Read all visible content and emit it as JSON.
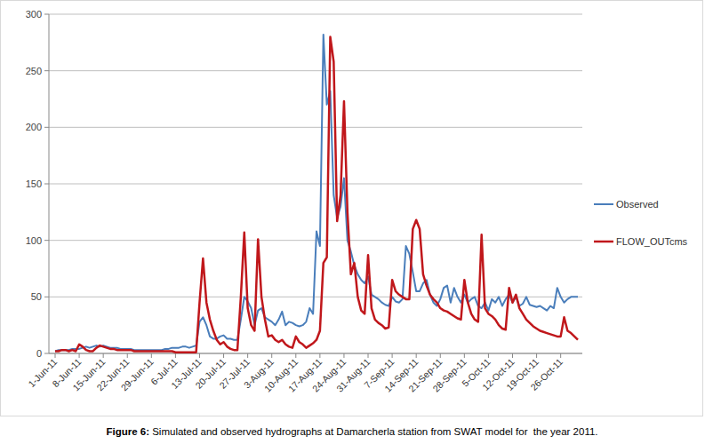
{
  "chart_data": {
    "type": "line",
    "title": "Figure 6: Simulated and observed hydrographs at Damarcherla station from SWAT model for  the year 2011.",
    "categories": [
      "1-Jun-11",
      null,
      null,
      null,
      null,
      null,
      null,
      "8-Jun-11",
      null,
      null,
      null,
      null,
      null,
      null,
      "15-Jun-11",
      null,
      null,
      null,
      null,
      null,
      null,
      "22-Jun-11",
      null,
      null,
      null,
      null,
      null,
      null,
      "29-Jun-11",
      null,
      null,
      null,
      null,
      null,
      null,
      "6-Jul-11",
      null,
      null,
      null,
      null,
      null,
      null,
      "13-Jul-11",
      null,
      null,
      null,
      null,
      null,
      null,
      "20-Jul-11",
      null,
      null,
      null,
      null,
      null,
      null,
      "27-Jul-11",
      null,
      null,
      null,
      null,
      null,
      null,
      "3-Aug-11",
      null,
      null,
      null,
      null,
      null,
      null,
      "10-Aug-11",
      null,
      null,
      null,
      null,
      null,
      null,
      "17-Aug-11",
      null,
      null,
      null,
      null,
      null,
      null,
      "24-Aug-11",
      null,
      null,
      null,
      null,
      null,
      null,
      "31-Aug-11",
      null,
      null,
      null,
      null,
      null,
      null,
      "7-Sep-11",
      null,
      null,
      null,
      null,
      null,
      null,
      "14-Sep-11",
      null,
      null,
      null,
      null,
      null,
      null,
      "21-Sep-11",
      null,
      null,
      null,
      null,
      null,
      null,
      "28-Sep-11",
      null,
      null,
      null,
      null,
      null,
      null,
      "5-Oct-11",
      null,
      null,
      null,
      null,
      null,
      null,
      "12-Oct-11",
      null,
      null,
      null,
      null,
      null,
      null,
      "19-Oct-11",
      null,
      null,
      null,
      null,
      null,
      null,
      "26-Oct-11",
      null,
      null,
      null,
      null,
      null
    ],
    "series": [
      {
        "name": "Observed",
        "color": "#4a7ebb",
        "values": [
          2,
          3,
          3,
          3,
          3,
          4,
          4,
          4,
          5,
          6,
          5,
          6,
          7,
          6,
          7,
          6,
          5,
          5,
          5,
          4,
          4,
          4,
          4,
          3,
          3,
          3,
          3,
          3,
          3,
          3,
          3,
          3,
          4,
          4,
          5,
          5,
          5,
          6,
          6,
          5,
          6,
          7,
          28,
          32,
          25,
          15,
          13,
          13,
          15,
          16,
          13,
          13,
          12,
          12,
          30,
          50,
          46,
          40,
          25,
          38,
          40,
          32,
          30,
          28,
          25,
          30,
          37,
          25,
          28,
          27,
          25,
          24,
          25,
          28,
          40,
          35,
          108,
          95,
          282,
          220,
          232,
          140,
          120,
          130,
          155,
          100,
          90,
          78,
          70,
          65,
          62,
          68,
          52,
          50,
          48,
          45,
          43,
          42,
          50,
          46,
          45,
          48,
          95,
          88,
          72,
          55,
          55,
          62,
          65,
          52,
          45,
          42,
          48,
          58,
          60,
          45,
          58,
          50,
          45,
          52,
          45,
          48,
          50,
          42,
          40,
          45,
          38,
          48,
          45,
          50,
          42,
          48,
          52,
          45,
          50,
          42,
          44,
          50,
          43,
          42,
          41,
          42,
          40,
          38,
          42,
          40,
          58,
          50,
          45,
          48,
          50,
          50,
          50
        ]
      },
      {
        "name": "FLOW_OUTcms",
        "color": "#c0171b",
        "values": [
          2,
          2,
          3,
          3,
          2,
          3,
          2,
          8,
          6,
          3,
          2,
          2,
          5,
          7,
          6,
          5,
          4,
          4,
          3,
          3,
          3,
          3,
          3,
          2,
          2,
          2,
          2,
          2,
          2,
          2,
          2,
          2,
          2,
          2,
          2,
          1,
          1,
          1,
          1,
          1,
          1,
          1,
          45,
          84,
          45,
          30,
          20,
          12,
          8,
          10,
          6,
          4,
          3,
          3,
          50,
          107,
          40,
          25,
          20,
          101,
          50,
          30,
          15,
          16,
          12,
          10,
          12,
          8,
          6,
          5,
          15,
          10,
          8,
          5,
          7,
          9,
          12,
          20,
          80,
          85,
          280,
          258,
          117,
          140,
          223,
          125,
          70,
          80,
          50,
          38,
          35,
          87,
          40,
          30,
          27,
          25,
          22,
          23,
          65,
          55,
          52,
          50,
          48,
          48,
          110,
          118,
          110,
          70,
          60,
          52,
          48,
          45,
          40,
          38,
          37,
          35,
          33,
          31,
          30,
          65,
          45,
          35,
          30,
          28,
          105,
          40,
          35,
          33,
          30,
          25,
          22,
          21,
          58,
          45,
          52,
          40,
          35,
          30,
          27,
          24,
          22,
          20,
          19,
          18,
          17,
          16,
          15,
          15,
          32,
          20,
          18,
          15,
          12
        ]
      }
    ],
    "ylim": [
      0,
      300
    ],
    "yticks": [
      0,
      50,
      100,
      150,
      200,
      250,
      300
    ],
    "grid": true,
    "legend": "right"
  }
}
